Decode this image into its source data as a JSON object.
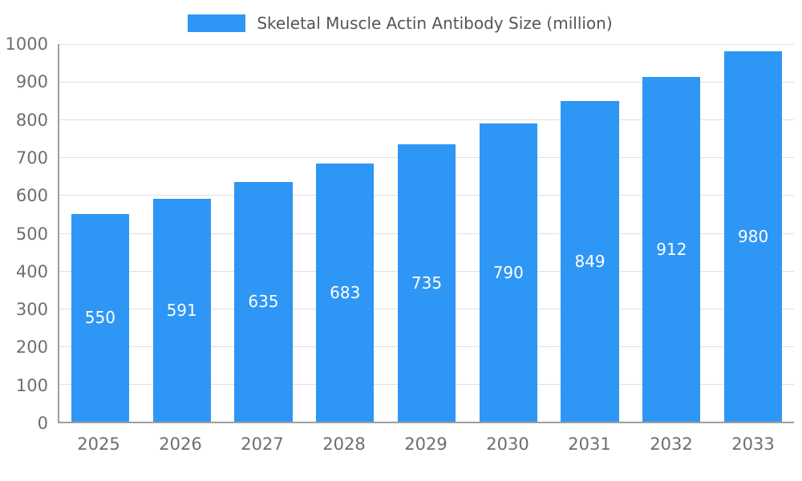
{
  "legend": {
    "label": "Skeletal Muscle Actin Antibody Size (million)"
  },
  "chart_data": {
    "type": "bar",
    "title": "Skeletal Muscle Actin Antibody Size (million)",
    "categories": [
      "2025",
      "2026",
      "2027",
      "2028",
      "2029",
      "2030",
      "2031",
      "2032",
      "2033"
    ],
    "values": [
      550,
      591,
      635,
      683,
      735,
      790,
      849,
      912,
      980
    ],
    "xlabel": "",
    "ylabel": "",
    "ylim": [
      0,
      1000
    ],
    "ytick_step": 100,
    "grid": true,
    "legend_position": "top",
    "bar_color": "#2E96F5",
    "value_label_color": "#ffffff",
    "axis_label_color": "#6E6E6E",
    "title_color": "#555555"
  }
}
